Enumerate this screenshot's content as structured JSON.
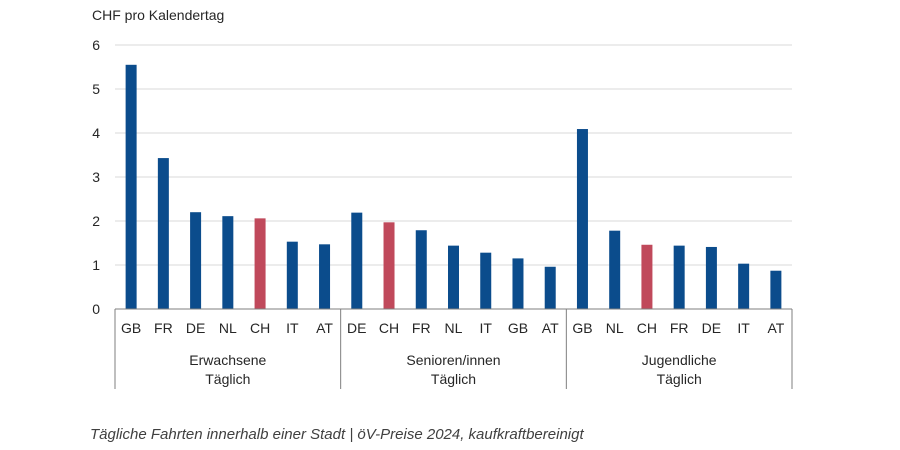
{
  "chart_data": {
    "type": "bar",
    "ylabel": "CHF pro Kalendertag",
    "ylim": [
      0,
      6
    ],
    "yticks": [
      "0",
      "1",
      "2",
      "3",
      "4",
      "5",
      "6"
    ],
    "grid": true,
    "colors": {
      "default": "#0b4c8c",
      "highlight": "#c0495b",
      "grid": "#d9d9d9",
      "axis": "#7f7f7f"
    },
    "highlight_category": "CH",
    "groups": [
      {
        "label_line1": "Erwachsene",
        "label_line2": "Täglich",
        "categories": [
          "GB",
          "FR",
          "DE",
          "NL",
          "CH",
          "IT",
          "AT"
        ],
        "values": [
          5.55,
          3.43,
          2.2,
          2.11,
          2.06,
          1.53,
          1.47
        ]
      },
      {
        "label_line1": "Senioren/innen",
        "label_line2": "Täglich",
        "categories": [
          "DE",
          "CH",
          "FR",
          "NL",
          "IT",
          "GB",
          "AT"
        ],
        "values": [
          2.19,
          1.97,
          1.79,
          1.44,
          1.28,
          1.15,
          0.96
        ]
      },
      {
        "label_line1": "Jugendliche",
        "label_line2": "Täglich",
        "categories": [
          "GB",
          "NL",
          "CH",
          "FR",
          "DE",
          "IT",
          "AT"
        ],
        "values": [
          4.09,
          1.78,
          1.46,
          1.44,
          1.41,
          1.03,
          0.87
        ]
      }
    ]
  },
  "caption": "Tägliche Fahrten innerhalb einer Stadt | öV-Preise 2024, kaufkraftbereinigt"
}
